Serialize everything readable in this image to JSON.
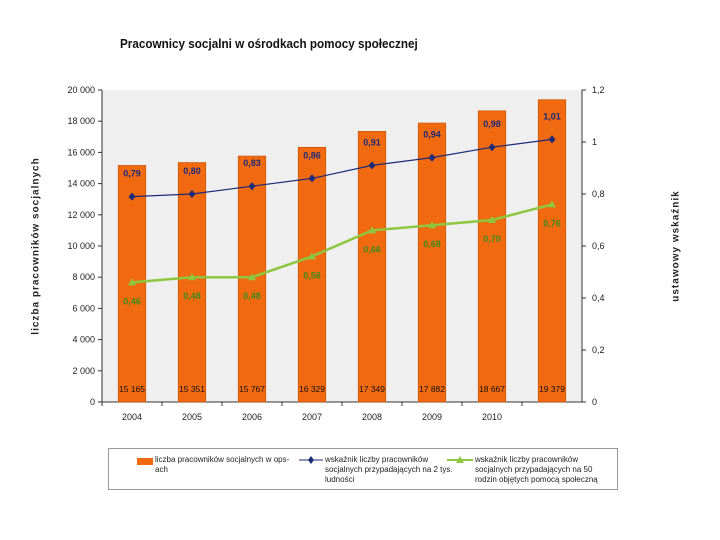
{
  "chart_data": {
    "type": "bar+line",
    "title": "Pracownicy socjalni w ośrodkach pomocy społecznej",
    "ylabel_left": "liczba pracowników socjalnych",
    "ylabel_right": "ustawowy wskaźnik",
    "categories": [
      "2004",
      "2005",
      "2006",
      "2007",
      "2008",
      "2009",
      "2010",
      ""
    ],
    "left_axis": {
      "ylim": [
        0,
        20000
      ],
      "ticks": [
        "0",
        "2 000",
        "4 000",
        "6 000",
        "8 000",
        "10 000",
        "12 000",
        "14 000",
        "16 000",
        "18 000",
        "20 000"
      ]
    },
    "right_axis": {
      "ylim": [
        0,
        1.2
      ],
      "ticks": [
        "0",
        "0,2",
        "0,4",
        "0,6",
        "0,8",
        "1",
        "1,2"
      ]
    },
    "series": [
      {
        "name": "liczba pracowników socjalnych w ops-ach",
        "axis": "left",
        "type": "bar",
        "color": "#f26a10",
        "values": [
          15165,
          15351,
          15767,
          16329,
          17349,
          17882,
          18667,
          19379
        ],
        "labels": [
          "15 165",
          "15 351",
          "15 767",
          "16 329",
          "17 349",
          "17 882",
          "18 667",
          "19 379"
        ]
      },
      {
        "name": "wskaźnik liczby pracowników socjalnych przypadających na 2 tys. ludności",
        "axis": "right",
        "type": "line",
        "color": "#1b2a7a",
        "values": [
          0.79,
          0.8,
          0.83,
          0.86,
          0.91,
          0.94,
          0.98,
          1.01
        ],
        "labels": [
          "0,79",
          "0,80",
          "0,83",
          "0,86",
          "0,91",
          "0,94",
          "0,98",
          "1,01"
        ]
      },
      {
        "name": "wskaźnik liczby pracowników socjalnych przypadających na 50 rodzin objętych pomocą społeczną",
        "axis": "right",
        "type": "line",
        "color": "#8dc63f",
        "values": [
          0.46,
          0.48,
          0.48,
          0.56,
          0.66,
          0.68,
          0.7,
          0.76
        ],
        "labels": [
          "0,46",
          "0,48",
          "0,48",
          "0,56",
          "0,66",
          "0,68",
          "0,70",
          "0,76"
        ]
      }
    ],
    "legend": [
      "liczba pracowników socjalnych w ops-ach",
      "wskaźnik liczby pracowników socjalnych przypadających na 2 tys. ludności",
      "wskaźnik liczby pracowników socjalnych przypadających na 50 rodzin objętych pomocą społeczną"
    ]
  }
}
